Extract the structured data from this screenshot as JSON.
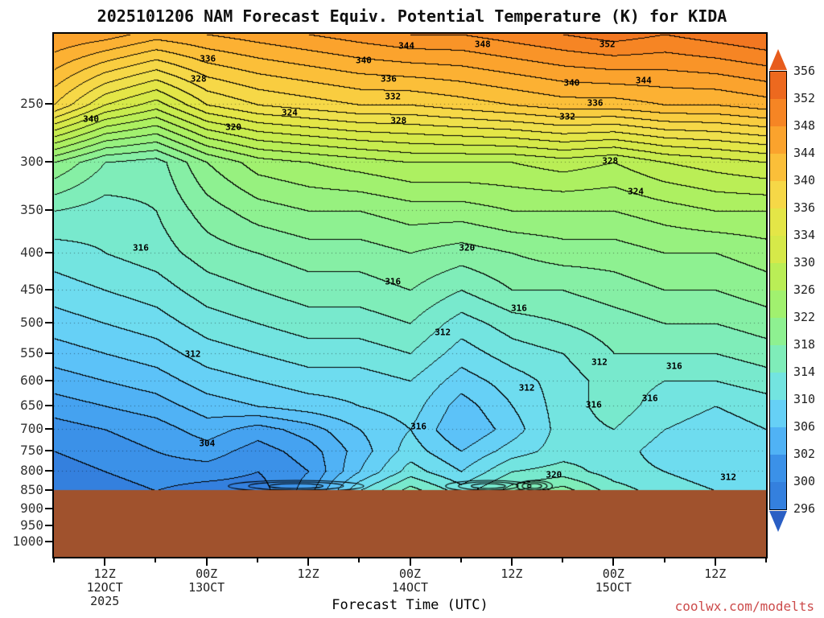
{
  "title": "2025101206 NAM Forecast Equiv. Potential Temperature (K) for KIDA",
  "watermark": {
    "text": "coolwx.com/modelts",
    "color": "#cc4b4b"
  },
  "chart_data": {
    "type": "heatmap",
    "title": "2025101206 NAM Forecast Equiv. Potential Temperature (K) for KIDA",
    "xlabel": "Forecast Time (UTC)",
    "ylabel": "",
    "units": "K",
    "station": "KIDA",
    "model_run": "2025101206",
    "time_range_hours": [
      0,
      84
    ],
    "x_ticks": [
      {
        "hour": 6,
        "label": "12Z",
        "date": "12OCT",
        "year": "2025"
      },
      {
        "hour": 18,
        "label": "00Z",
        "date": "13OCT"
      },
      {
        "hour": 30,
        "label": "12Z"
      },
      {
        "hour": 42,
        "label": "00Z",
        "date": "14OCT"
      },
      {
        "hour": 54,
        "label": "12Z"
      },
      {
        "hour": 66,
        "label": "00Z",
        "date": "15OCT"
      },
      {
        "hour": 78,
        "label": "12Z"
      }
    ],
    "minor_tick_hours": [
      0,
      12,
      24,
      36,
      48,
      60,
      72,
      84
    ],
    "pressure_ticks": [
      250,
      300,
      350,
      400,
      450,
      500,
      550,
      600,
      650,
      700,
      750,
      800,
      850,
      900,
      950,
      1000
    ],
    "pressure_range": [
      200,
      1050
    ],
    "log_pressure_axis": true,
    "ground_pressure": 850,
    "ground_color": "#a0522d",
    "contour_interval": 2,
    "levels_min": 296,
    "levels_max": 356,
    "band_colors": [
      "#2a5fc4",
      "#2f6fd2",
      "#3480de",
      "#3b91e8",
      "#45a2f0",
      "#50b2f5",
      "#5cc2f8",
      "#66d0f6",
      "#6edcef",
      "#73e4e0",
      "#78e9cd",
      "#7fedb9",
      "#86efa5",
      "#8ef191",
      "#97f17f",
      "#a1f16f",
      "#adf061",
      "#baee56",
      "#c8ec4e",
      "#d6e949",
      "#e4e647",
      "#efe04b",
      "#f6d847",
      "#f9cd40",
      "#fbbf39",
      "#fcb133",
      "#fba32d",
      "#f99428",
      "#f68524",
      "#f27721",
      "#ed691f",
      "#e75c1d"
    ],
    "grid": {
      "hours": [
        0,
        6,
        12,
        18,
        24,
        30,
        36,
        42,
        48,
        54,
        60,
        66,
        72,
        78,
        84
      ],
      "pressures": [
        200,
        250,
        300,
        350,
        400,
        450,
        500,
        550,
        600,
        650,
        700,
        750,
        800,
        850
      ],
      "values": [
        [
          348,
          347,
          345,
          346,
          347,
          348,
          349,
          350,
          350,
          351,
          352,
          353,
          352,
          353,
          354
        ],
        [
          340,
          334,
          331,
          336,
          338,
          339,
          340,
          340,
          341,
          342,
          343,
          343,
          344,
          344,
          345
        ],
        [
          322,
          318,
          317,
          322,
          325,
          326,
          327,
          328,
          328,
          328,
          329,
          328,
          330,
          331,
          332
        ],
        [
          316,
          315,
          316,
          319,
          321,
          322,
          322,
          323,
          323,
          324,
          324,
          324,
          325,
          326,
          326
        ],
        [
          313,
          314,
          315,
          317,
          318,
          319,
          319,
          320,
          319,
          320,
          321,
          321,
          322,
          322,
          323
        ],
        [
          311,
          312,
          313,
          315,
          316,
          317,
          317,
          318,
          316,
          318,
          318,
          319,
          320,
          320,
          321
        ],
        [
          309,
          310,
          311,
          313,
          314,
          315,
          315,
          316,
          313,
          315,
          316,
          317,
          318,
          318,
          319
        ],
        [
          307,
          308,
          309,
          311,
          312,
          313,
          313,
          314,
          311,
          313,
          314,
          316,
          316,
          316,
          317
        ],
        [
          305,
          306,
          307,
          309,
          310,
          311,
          311,
          312,
          309,
          311,
          313,
          315,
          314,
          314,
          315
        ],
        [
          303,
          304,
          305,
          307,
          308,
          309,
          310,
          311,
          307,
          310,
          313,
          315,
          313,
          312,
          313
        ],
        [
          301,
          302,
          303,
          305,
          303,
          305,
          308,
          310,
          306,
          309,
          313,
          314,
          312,
          311,
          312
        ],
        [
          300,
          301,
          302,
          303,
          301,
          303,
          307,
          311,
          308,
          311,
          313,
          313,
          311,
          310,
          311
        ],
        [
          299,
          300,
          301,
          301,
          300,
          302,
          308,
          313,
          310,
          314,
          315,
          313,
          312,
          311,
          310
        ],
        [
          298,
          299,
          300,
          299,
          299,
          303,
          312,
          317,
          313,
          317,
          319,
          315,
          313,
          312,
          311
        ]
      ]
    },
    "colorbar": {
      "labels": [
        356,
        352,
        348,
        344,
        340,
        336,
        334,
        330,
        326,
        322,
        318,
        314,
        310,
        306,
        302,
        300,
        296
      ],
      "cell_colors": [
        "#ed691f",
        "#f68524",
        "#fba32d",
        "#fbbf39",
        "#f6d847",
        "#e4e647",
        "#d6e949",
        "#baee56",
        "#a1f16f",
        "#8ef191",
        "#7fedb9",
        "#73e4e0",
        "#66d0f6",
        "#50b2f5",
        "#3b91e8",
        "#3480de"
      ],
      "arrow_top_color": "#e75c1d",
      "arrow_bottom_color": "#2a5fc4"
    },
    "contour_labels": [
      {
        "v": 344,
        "x": 49.5,
        "y": 2.3
      },
      {
        "v": 348,
        "x": 60.2,
        "y": 2.0
      },
      {
        "v": 352,
        "x": 77.7,
        "y": 2.0
      },
      {
        "v": 336,
        "x": 21.6,
        "y": 4.8
      },
      {
        "v": 340,
        "x": 43.5,
        "y": 5.1
      },
      {
        "v": 344,
        "x": 82.8,
        "y": 8.9
      },
      {
        "v": 328,
        "x": 20.3,
        "y": 8.6
      },
      {
        "v": 336,
        "x": 47.0,
        "y": 8.6
      },
      {
        "v": 340,
        "x": 72.7,
        "y": 9.4
      },
      {
        "v": 332,
        "x": 47.6,
        "y": 12.0
      },
      {
        "v": 336,
        "x": 76.0,
        "y": 13.2
      },
      {
        "v": 324,
        "x": 33.1,
        "y": 15.1
      },
      {
        "v": 332,
        "x": 72.1,
        "y": 15.8
      },
      {
        "v": 340,
        "x": 5.2,
        "y": 16.3
      },
      {
        "v": 328,
        "x": 48.4,
        "y": 16.6
      },
      {
        "v": 320,
        "x": 25.2,
        "y": 17.8
      },
      {
        "v": 328,
        "x": 78.1,
        "y": 24.3
      },
      {
        "v": 324,
        "x": 81.7,
        "y": 30.2
      },
      {
        "v": 316,
        "x": 12.2,
        "y": 40.9
      },
      {
        "v": 320,
        "x": 58.0,
        "y": 40.9
      },
      {
        "v": 316,
        "x": 47.6,
        "y": 47.4
      },
      {
        "v": 316,
        "x": 65.3,
        "y": 52.5
      },
      {
        "v": 312,
        "x": 54.6,
        "y": 57.1
      },
      {
        "v": 312,
        "x": 19.5,
        "y": 61.2
      },
      {
        "v": 312,
        "x": 76.6,
        "y": 62.8
      },
      {
        "v": 316,
        "x": 87.1,
        "y": 63.5
      },
      {
        "v": 312,
        "x": 66.4,
        "y": 67.7
      },
      {
        "v": 316,
        "x": 75.8,
        "y": 70.9
      },
      {
        "v": 316,
        "x": 83.7,
        "y": 69.7
      },
      {
        "v": 316,
        "x": 51.2,
        "y": 75.1
      },
      {
        "v": 304,
        "x": 21.5,
        "y": 78.3
      },
      {
        "v": 320,
        "x": 70.2,
        "y": 84.3
      },
      {
        "v": 312,
        "x": 94.7,
        "y": 84.8
      }
    ],
    "surface_packs": [
      {
        "x": 34.0,
        "w": 19.0
      },
      {
        "x": 61.0,
        "w": 12.0
      },
      {
        "x": 67.5,
        "w": 5.0
      }
    ]
  }
}
